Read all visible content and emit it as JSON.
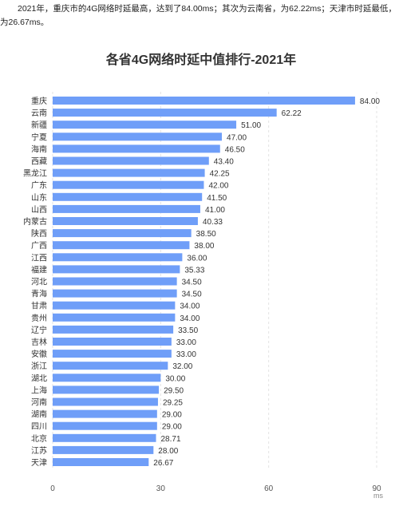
{
  "intro_text": "2021年，重庆市的4G网络时延最高，达到了84.00ms；其次为云南省，为62.22ms；天津市时延最低，为26.67ms。",
  "chart_data": {
    "type": "bar",
    "orientation": "horizontal",
    "title": "各省4G网络时延中值排行-2021年",
    "unit_label": "ms",
    "categories": [
      "重庆",
      "云南",
      "新疆",
      "宁夏",
      "海南",
      "西藏",
      "黑龙江",
      "广东",
      "山东",
      "山西",
      "内蒙古",
      "陕西",
      "广西",
      "江西",
      "福建",
      "河北",
      "青海",
      "甘肃",
      "贵州",
      "辽宁",
      "吉林",
      "安徽",
      "浙江",
      "湖北",
      "上海",
      "河南",
      "湖南",
      "四川",
      "北京",
      "江苏",
      "天津"
    ],
    "values": [
      84.0,
      62.22,
      51.0,
      47.0,
      46.5,
      43.4,
      42.25,
      42.0,
      41.5,
      41.0,
      40.33,
      38.5,
      38.0,
      36.0,
      35.33,
      34.5,
      34.5,
      34.0,
      34.0,
      33.5,
      33.0,
      33.0,
      32.0,
      30.0,
      29.5,
      29.25,
      29.0,
      29.0,
      28.71,
      28.0,
      26.67
    ],
    "value_labels": [
      "84.00",
      "62.22",
      "51.00",
      "47.00",
      "46.50",
      "43.40",
      "42.25",
      "42.00",
      "41.50",
      "41.00",
      "40.33",
      "38.50",
      "38.00",
      "36.00",
      "35.33",
      "34.50",
      "34.50",
      "34.00",
      "34.00",
      "33.50",
      "33.00",
      "33.00",
      "32.00",
      "30.00",
      "29.50",
      "29.25",
      "29.00",
      "29.00",
      "28.71",
      "28.00",
      "26.67"
    ],
    "xlim": [
      0,
      90
    ],
    "xticks": [
      "0",
      "30",
      "60",
      "90"
    ],
    "grid": true,
    "bar_color": "#6f9ef8"
  }
}
